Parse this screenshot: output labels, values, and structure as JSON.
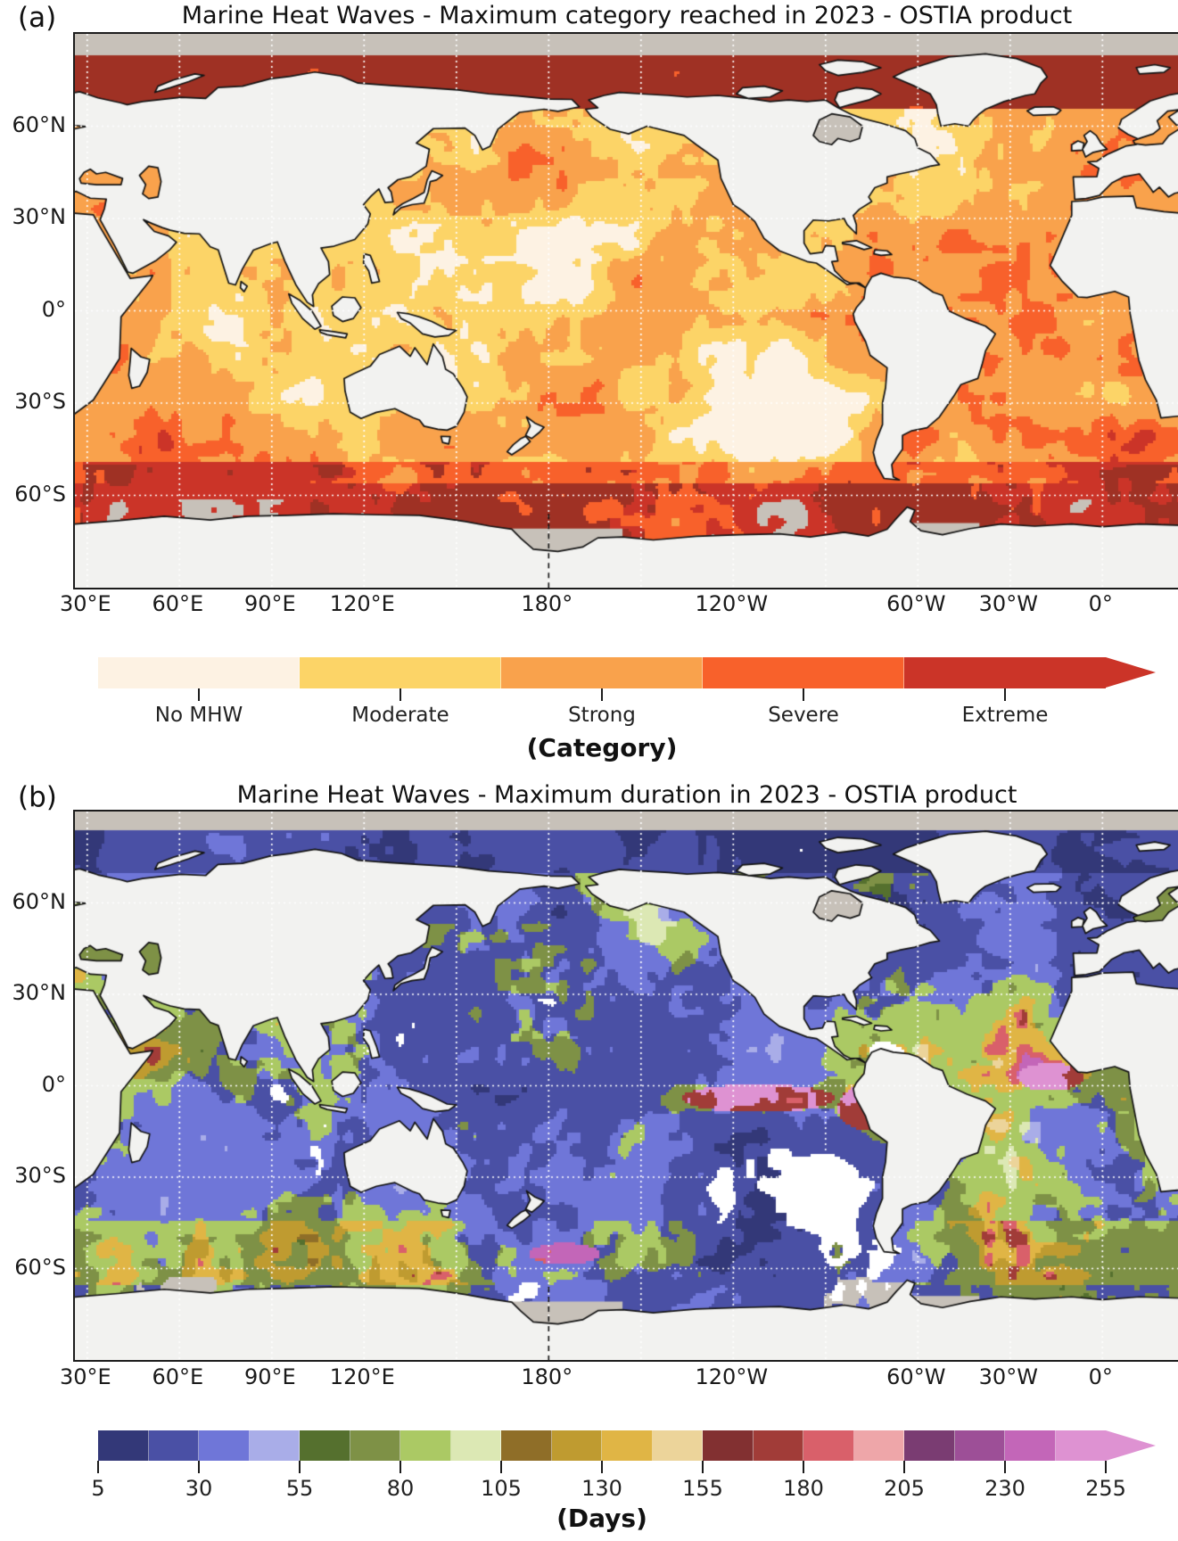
{
  "panel_a": {
    "label": "(a)",
    "title": "Marine Heat Waves - Maximum category reached in 2023 - OSTIA product",
    "y_ticks": [
      {
        "label": "60°N",
        "lat": 60
      },
      {
        "label": "30°N",
        "lat": 30
      },
      {
        "label": "0°",
        "lat": 0
      },
      {
        "label": "30°S",
        "lat": -30
      },
      {
        "label": "60°S",
        "lat": -60
      }
    ],
    "x_ticks": [
      {
        "label": "30°E",
        "lon": 30
      },
      {
        "label": "60°E",
        "lon": 60
      },
      {
        "label": "90°E",
        "lon": 90
      },
      {
        "label": "120°E",
        "lon": 120
      },
      {
        "label": "180°",
        "lon": 180
      },
      {
        "label": "120°W",
        "lon": 240
      },
      {
        "label": "60°W",
        "lon": 300
      },
      {
        "label": "30°W",
        "lon": 330
      },
      {
        "label": "0°",
        "lon": 360
      }
    ],
    "colorbar": {
      "caption": "(Category)",
      "categories": [
        "No MHW",
        "Moderate",
        "Strong",
        "Severe",
        "Extreme"
      ],
      "colors": [
        "#fdf2e3",
        "#fcd467",
        "#f9a24c",
        "#f8612b",
        "#cb3428"
      ]
    }
  },
  "panel_b": {
    "label": "(b)",
    "title": "Marine Heat Waves - Maximum duration in 2023 - OSTIA product",
    "y_ticks": [
      {
        "label": "60°N",
        "lat": 60
      },
      {
        "label": "30°N",
        "lat": 30
      },
      {
        "label": "0°",
        "lat": 0
      },
      {
        "label": "30°S",
        "lat": -30
      },
      {
        "label": "60°S",
        "lat": -60
      }
    ],
    "x_ticks": [
      {
        "label": "30°E",
        "lon": 30
      },
      {
        "label": "60°E",
        "lon": 60
      },
      {
        "label": "90°E",
        "lon": 90
      },
      {
        "label": "120°E",
        "lon": 120
      },
      {
        "label": "180°",
        "lon": 180
      },
      {
        "label": "120°W",
        "lon": 240
      },
      {
        "label": "60°W",
        "lon": 300
      },
      {
        "label": "30°W",
        "lon": 330
      },
      {
        "label": "0°",
        "lon": 360
      }
    ],
    "colorbar": {
      "caption": "(Days)",
      "tick_labels": [
        "5",
        "30",
        "55",
        "80",
        "105",
        "130",
        "155",
        "180",
        "205",
        "230",
        "255"
      ],
      "tick_values": [
        5,
        30,
        55,
        80,
        105,
        130,
        155,
        180,
        205,
        230,
        255
      ],
      "colors": [
        "#333878",
        "#4a50a5",
        "#6f76d8",
        "#a9ade8",
        "#55702e",
        "#7e9146",
        "#abc964",
        "#dce8b4",
        "#8f6e28",
        "#bf9b30",
        "#e0b545",
        "#ecd49a",
        "#823031",
        "#a13c38",
        "#d9606a",
        "#eea6a9",
        "#7a3c72",
        "#9d4f97",
        "#c366b8",
        "#de92d2"
      ]
    }
  },
  "map_colors": {
    "land": "#f2f2f0",
    "coast": "#141414",
    "ice": "#c7c1b9",
    "gridline": "#ffffff",
    "no_mhw": "#fdf2e3",
    "moderate": "#fcd467",
    "strong": "#f9a24c",
    "severe": "#f8612b",
    "extreme": "#cb3428",
    "extreme_dark": "#9f3124",
    "arctic_tan": "#c9a96a",
    "no_event_white": "#ffffff",
    "inland_sea_a": "#f9a24c",
    "inland_sea_b": "#7e9146"
  }
}
